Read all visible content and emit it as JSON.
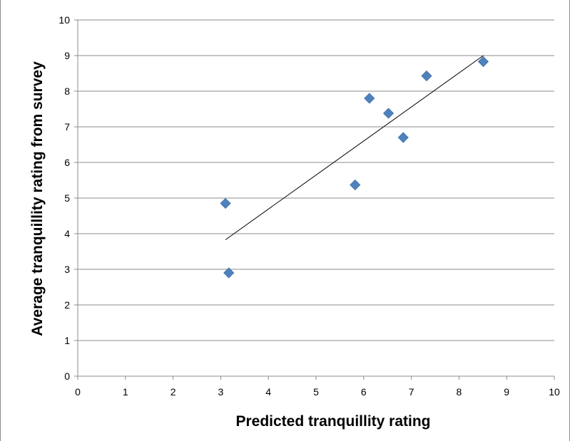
{
  "chart_data": {
    "type": "scatter",
    "title": "",
    "xlabel": "Predicted tranquillity rating",
    "ylabel": "Average tranquillity rating from survey",
    "xlim": [
      0,
      10
    ],
    "ylim": [
      0,
      10
    ],
    "xticks": [
      "0",
      "1",
      "2",
      "3",
      "4",
      "5",
      "6",
      "7",
      "8",
      "9",
      "10"
    ],
    "yticks": [
      "0",
      "1",
      "2",
      "3",
      "4",
      "5",
      "6",
      "7",
      "8",
      "9",
      "10"
    ],
    "grid": "horizontal",
    "legend": "none",
    "marker": "diamond",
    "marker_color": "#4f81bd",
    "trendline_color": "#000000",
    "points": [
      {
        "x": 3.1,
        "y": 4.85
      },
      {
        "x": 3.17,
        "y": 2.9
      },
      {
        "x": 5.82,
        "y": 5.37
      },
      {
        "x": 6.12,
        "y": 7.8
      },
      {
        "x": 6.52,
        "y": 7.38
      },
      {
        "x": 6.83,
        "y": 6.7
      },
      {
        "x": 7.32,
        "y": 8.43
      },
      {
        "x": 8.51,
        "y": 8.83
      }
    ],
    "trendline": [
      {
        "x": 3.1,
        "y": 3.83
      },
      {
        "x": 8.51,
        "y": 9.0
      }
    ]
  }
}
